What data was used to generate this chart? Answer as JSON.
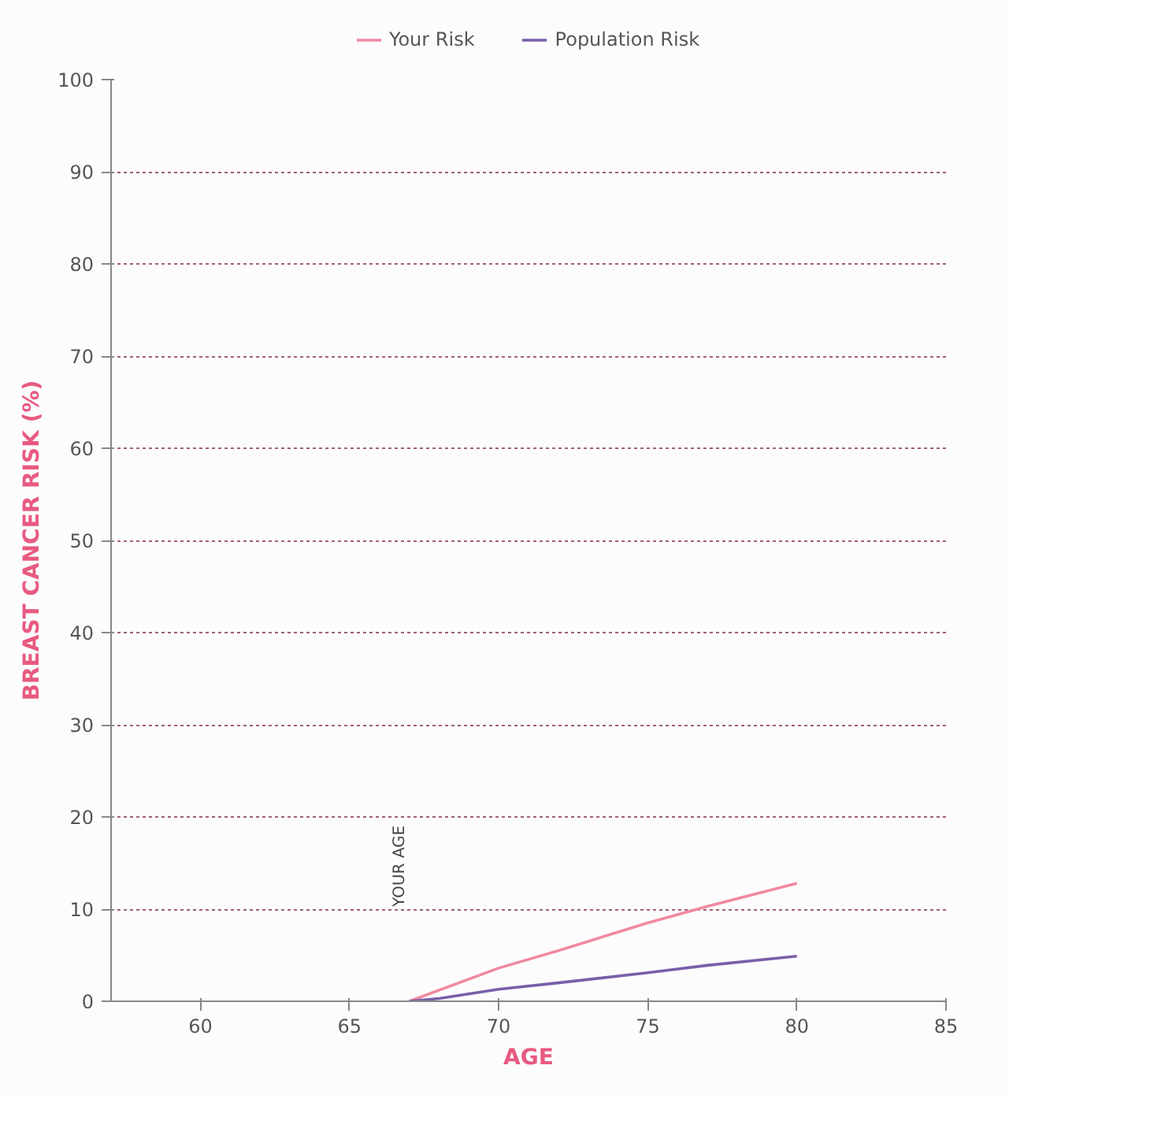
{
  "chart_data": {
    "type": "line",
    "xlabel": "AGE",
    "ylabel": "BREAST CANCER RISK (%)",
    "xlim": [
      57,
      85
    ],
    "xticks": [
      60,
      65,
      70,
      75,
      80,
      85
    ],
    "ylim": [
      0,
      100
    ],
    "yticks": [
      0,
      10,
      20,
      30,
      40,
      50,
      60,
      70,
      80,
      90,
      100
    ],
    "grid": "y",
    "legend": "top",
    "line_style": "solid",
    "marker": "none",
    "annotations": [
      "YOUR AGE"
    ],
    "series": [
      {
        "name": "Your Risk",
        "color": "#f08aa0",
        "x": [
          67,
          70,
          72,
          75,
          77,
          80
        ],
        "values": [
          0,
          3.6,
          5.5,
          8.5,
          10.3,
          12.8
        ]
      },
      {
        "name": "Population Risk",
        "color": "#7a5fa8",
        "x": [
          67,
          68,
          70,
          72,
          75,
          77,
          80
        ],
        "values": [
          0,
          0.3,
          1.3,
          2.0,
          3.1,
          3.9,
          4.9
        ]
      }
    ]
  }
}
